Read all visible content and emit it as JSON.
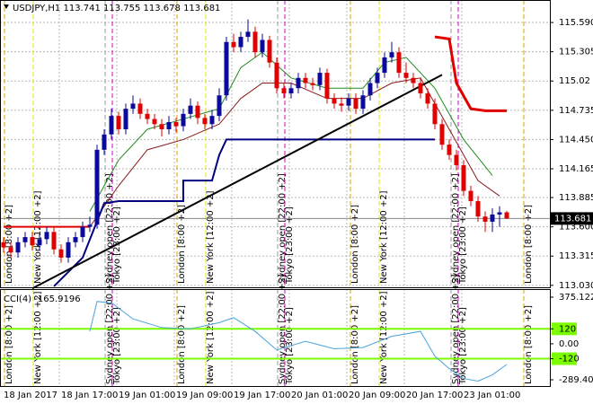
{
  "chart_data": [
    {
      "type": "candlestick",
      "title": "USDJPY,H1  113.741 113.755 113.678 113.681",
      "up_color": "#0a0a9c",
      "down_color": "#e00000",
      "ylim": [
        113.011,
        115.809
      ],
      "yticks": [
        {
          "value": 115.59,
          "label": "115.590"
        },
        115.305,
        115.02,
        114.735,
        {
          "value": 114.45,
          "label": "114.450"
        },
        114.165,
        113.885,
        {
          "value": 113.6,
          "label": "113.600"
        },
        113.315,
        {
          "value": 113.03,
          "label": "113.030"
        }
      ],
      "current_price": 113.681,
      "grid": true,
      "x_labels": [
        "18 Jan 2017",
        "18 Jan 17:00",
        "19 Jan 01:00",
        "19 Jan 09:00",
        "19 Jan 17:00",
        "20 Jan 01:00",
        "20 Jan 09:00",
        "20 Jan 17:00",
        "23 Jan 01:00"
      ],
      "sessions": [
        {
          "label": "London [8:00 +2]",
          "color": "#d9a300"
        },
        {
          "label": "New York [12:00 +2]",
          "color": "#e6e600"
        },
        {
          "label": "Sydney open [22:00 +2]",
          "color": "#9a9a9a"
        },
        {
          "label": "Tokyo [23:00 +2]",
          "color": "#d000d0"
        },
        {
          "label": "London [8:00 +2]",
          "color": "#d9a300"
        },
        {
          "label": "New York [12:00 +2]",
          "color": "#e6e600"
        },
        {
          "label": "Sydney open [22:00 +2]",
          "color": "#9a9a9a"
        },
        {
          "label": "Tokyo [23:00 +2]",
          "color": "#d000d0"
        },
        {
          "label": "London [8:00 +2]",
          "color": "#d9a300"
        },
        {
          "label": "New York [12:00 +2]",
          "color": "#e6e600"
        },
        {
          "label": "Sydney open [22:00 +2]",
          "color": "#9a9a9a"
        },
        {
          "label": "Tokyo [23:00 +2]",
          "color": "#d000d0"
        },
        {
          "label": "London [8:00 +2]",
          "color": "#d9a300"
        }
      ],
      "candles": [
        [
          113.45,
          113.5,
          113.35,
          113.4
        ],
        [
          113.4,
          113.45,
          113.3,
          113.35
        ],
        [
          113.35,
          113.5,
          113.3,
          113.45
        ],
        [
          113.45,
          113.55,
          113.4,
          113.5
        ],
        [
          113.5,
          113.55,
          113.37,
          113.42
        ],
        [
          113.42,
          113.53,
          113.37,
          113.48
        ],
        [
          113.48,
          113.6,
          113.43,
          113.55
        ],
        [
          113.55,
          113.6,
          113.33,
          113.38
        ],
        [
          113.38,
          113.43,
          113.25,
          113.3
        ],
        [
          113.3,
          113.5,
          113.25,
          113.45
        ],
        [
          113.45,
          113.55,
          113.4,
          113.5
        ],
        [
          113.5,
          113.65,
          113.45,
          113.6
        ],
        [
          113.6,
          113.7,
          113.55,
          113.62
        ],
        [
          113.62,
          114.4,
          113.58,
          114.35
        ],
        [
          114.35,
          114.55,
          114.3,
          114.5
        ],
        [
          114.5,
          114.75,
          114.45,
          114.68
        ],
        [
          114.68,
          114.72,
          114.5,
          114.55
        ],
        [
          114.55,
          114.8,
          114.5,
          114.75
        ],
        [
          114.75,
          114.88,
          114.7,
          114.8
        ],
        [
          114.8,
          114.85,
          114.65,
          114.7
        ],
        [
          114.7,
          114.75,
          114.6,
          114.65
        ],
        [
          114.65,
          114.7,
          114.55,
          114.6
        ],
        [
          114.6,
          114.65,
          114.48,
          114.55
        ],
        [
          114.55,
          114.68,
          114.5,
          114.62
        ],
        [
          114.62,
          114.66,
          114.52,
          114.58
        ],
        [
          114.58,
          114.75,
          114.53,
          114.7
        ],
        [
          114.7,
          114.85,
          114.65,
          114.78
        ],
        [
          114.78,
          114.82,
          114.6,
          114.66
        ],
        [
          114.66,
          114.7,
          114.55,
          114.6
        ],
        [
          114.6,
          114.74,
          114.55,
          114.68
        ],
        [
          114.68,
          114.95,
          114.63,
          114.88
        ],
        [
          114.88,
          115.45,
          114.83,
          115.4
        ],
        [
          115.4,
          115.48,
          115.3,
          115.35
        ],
        [
          115.35,
          115.5,
          115.3,
          115.45
        ],
        [
          115.45,
          115.62,
          115.4,
          115.5
        ],
        [
          115.5,
          115.55,
          115.25,
          115.3
        ],
        [
          115.3,
          115.48,
          115.25,
          115.42
        ],
        [
          115.42,
          115.46,
          115.15,
          115.2
        ],
        [
          115.2,
          115.25,
          114.9,
          114.95
        ],
        [
          114.95,
          115.0,
          114.85,
          114.9
        ],
        [
          114.9,
          115.0,
          114.85,
          114.95
        ],
        [
          114.95,
          115.1,
          114.9,
          115.05
        ],
        [
          115.05,
          115.1,
          114.95,
          115.0
        ],
        [
          115.0,
          115.05,
          114.93,
          114.98
        ],
        [
          114.98,
          115.15,
          114.93,
          115.1
        ],
        [
          115.1,
          115.14,
          114.8,
          114.85
        ],
        [
          114.85,
          114.9,
          114.75,
          114.8
        ],
        [
          114.8,
          114.86,
          114.72,
          114.78
        ],
        [
          114.78,
          114.9,
          114.73,
          114.85
        ],
        [
          114.85,
          114.9,
          114.7,
          114.75
        ],
        [
          114.75,
          114.93,
          114.7,
          114.88
        ],
        [
          114.88,
          115.05,
          114.83,
          115.0
        ],
        [
          115.0,
          115.15,
          114.95,
          115.1
        ],
        [
          115.1,
          115.3,
          115.05,
          115.25
        ],
        [
          115.25,
          115.4,
          115.2,
          115.3
        ],
        [
          115.3,
          115.35,
          115.05,
          115.1
        ],
        [
          115.1,
          115.2,
          115.0,
          115.05
        ],
        [
          115.05,
          115.1,
          114.95,
          115.0
        ],
        [
          115.0,
          115.05,
          114.85,
          114.9
        ],
        [
          114.9,
          114.95,
          114.75,
          114.8
        ],
        [
          114.8,
          114.85,
          114.55,
          114.6
        ],
        [
          114.6,
          114.65,
          114.35,
          114.4
        ],
        [
          114.4,
          114.45,
          114.25,
          114.3
        ],
        [
          114.3,
          114.35,
          114.15,
          114.2
        ],
        [
          114.2,
          114.25,
          113.9,
          113.95
        ],
        [
          113.95,
          114.0,
          113.8,
          113.85
        ],
        [
          113.85,
          113.9,
          113.65,
          113.7
        ],
        [
          113.7,
          113.75,
          113.55,
          113.65
        ],
        [
          113.65,
          113.78,
          113.55,
          113.72
        ],
        [
          113.72,
          113.8,
          113.6,
          113.741
        ],
        [
          113.741,
          113.755,
          113.678,
          113.681
        ]
      ],
      "lines": [
        {
          "color": "#228b22",
          "width": 1,
          "x": [
            12,
            16,
            20,
            25,
            30,
            33,
            36,
            40,
            45,
            50,
            53,
            56,
            60,
            64,
            68
          ],
          "values": [
            113.75,
            114.25,
            114.55,
            114.65,
            114.75,
            115.15,
            115.3,
            115.05,
            114.95,
            114.95,
            115.2,
            115.25,
            114.95,
            114.45,
            114.1
          ]
        },
        {
          "color": "#8b1a1a",
          "width": 1,
          "x": [
            12,
            16,
            20,
            25,
            30,
            33,
            36,
            40,
            45,
            50,
            54,
            58,
            62,
            66,
            69
          ],
          "values": [
            113.6,
            114.0,
            114.35,
            114.45,
            114.6,
            114.85,
            115.0,
            115.0,
            114.85,
            114.85,
            115.0,
            115.05,
            114.55,
            114.05,
            113.9
          ]
        },
        {
          "color": "#e00000",
          "width": 3,
          "x": [
            60,
            62,
            63,
            65,
            67,
            70
          ],
          "values": [
            115.45,
            115.43,
            115.0,
            114.75,
            114.73,
            114.73
          ]
        },
        {
          "color": "#000080",
          "width": 2,
          "x": [
            7,
            11,
            14,
            16,
            25,
            25,
            29,
            30,
            31,
            57,
            60
          ],
          "values": [
            113.02,
            113.3,
            113.83,
            113.85,
            113.85,
            114.05,
            114.05,
            114.3,
            114.45,
            114.45,
            114.45
          ]
        },
        {
          "color": "#000000",
          "width": 2,
          "x": [
            4,
            61
          ],
          "values": [
            113.0,
            115.08
          ]
        },
        {
          "color": "#e00000",
          "width": 2,
          "x": [
            0,
            12
          ],
          "values": [
            113.6,
            113.6
          ]
        }
      ]
    },
    {
      "type": "line",
      "title": "CCI(4) -165.9196",
      "color": "#4aa3d8",
      "level_color": "#7cfc00",
      "ylim": [
        -340,
        440
      ],
      "yticks": [
        375.1228,
        120,
        {
          "value": 0,
          "label": "0.00"
        },
        -120,
        -289.4085
      ],
      "levels": [
        120,
        -120
      ],
      "x": [
        12,
        13,
        15,
        18,
        22,
        26,
        30,
        32,
        35,
        38,
        42,
        46,
        50,
        54,
        58,
        60,
        62,
        64,
        66,
        68,
        70
      ],
      "values": [
        100,
        340,
        330,
        200,
        130,
        120,
        170,
        210,
        100,
        -50,
        20,
        -40,
        -30,
        60,
        100,
        -100,
        -200,
        -280,
        -300,
        -250,
        -165.9196
      ]
    }
  ]
}
